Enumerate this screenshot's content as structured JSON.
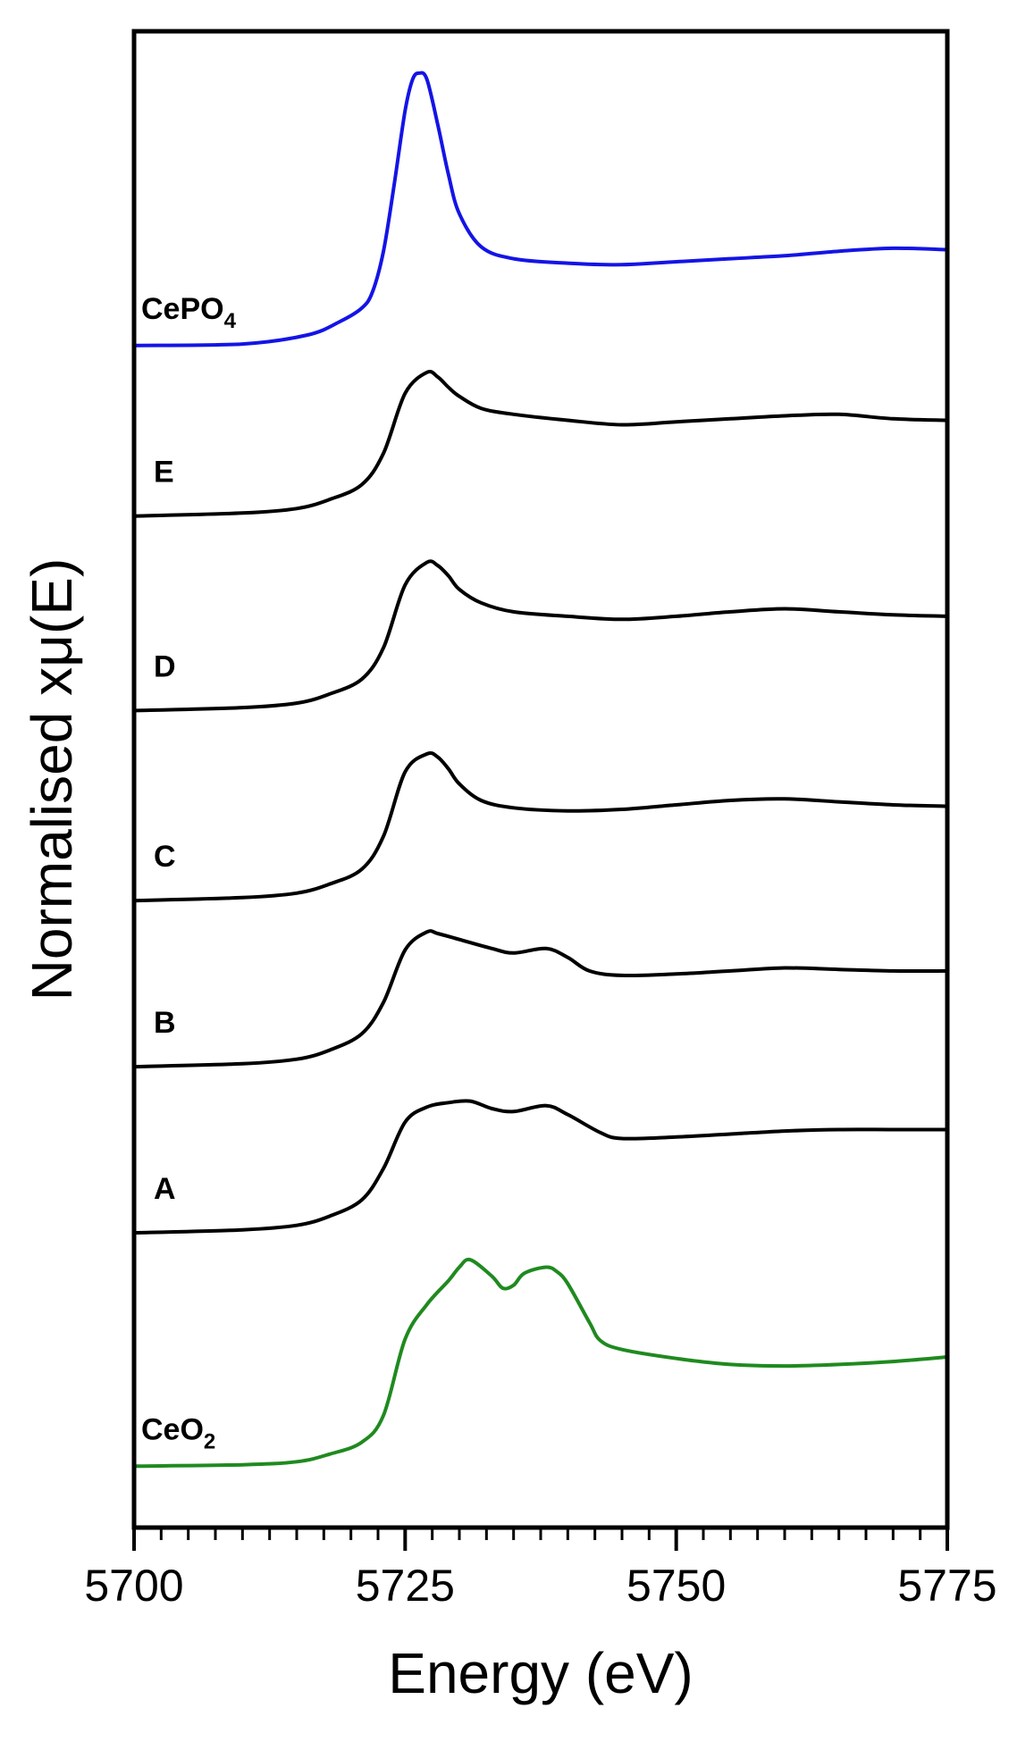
{
  "chart_data": {
    "type": "line",
    "xlabel": "Energy (eV)",
    "ylabel": "Normalised xμ(E)",
    "xlim": [
      5700,
      5775
    ],
    "ylim": [
      0,
      1
    ],
    "xticks": [
      5700,
      5725,
      5750,
      5775
    ],
    "minor_tick_step": 2.5,
    "yticks_shown": false,
    "grid": false,
    "legend": "inline labels at left of each curve",
    "series": [
      {
        "name": "CePO",
        "name_subscript": "4",
        "color": "#1414e6",
        "x": [
          5700,
          5710,
          5716,
          5719,
          5721,
          5722,
          5723,
          5724,
          5725,
          5725.7,
          5726.3,
          5727,
          5728,
          5729,
          5730,
          5732,
          5735,
          5740,
          5745,
          5750,
          5755,
          5760,
          5765,
          5770,
          5775
        ],
        "y": [
          0.79,
          0.791,
          0.797,
          0.806,
          0.815,
          0.826,
          0.853,
          0.898,
          0.947,
          0.968,
          0.972,
          0.968,
          0.938,
          0.904,
          0.878,
          0.856,
          0.848,
          0.845,
          0.844,
          0.846,
          0.848,
          0.85,
          0.853,
          0.855,
          0.854
        ]
      },
      {
        "name": "E",
        "color": "#000000",
        "x": [
          5700,
          5710,
          5715,
          5718,
          5721,
          5723,
          5725,
          5727,
          5728,
          5729,
          5730,
          5732,
          5735,
          5740,
          5745,
          5750,
          5755,
          5760,
          5765,
          5770,
          5775
        ],
        "y": [
          0.676,
          0.678,
          0.681,
          0.687,
          0.697,
          0.718,
          0.758,
          0.772,
          0.769,
          0.762,
          0.756,
          0.748,
          0.744,
          0.74,
          0.737,
          0.739,
          0.741,
          0.743,
          0.744,
          0.741,
          0.74
        ]
      },
      {
        "name": "D",
        "color": "#000000",
        "x": [
          5700,
          5710,
          5715,
          5718,
          5721,
          5723,
          5725,
          5727,
          5728,
          5729,
          5730,
          5732,
          5735,
          5740,
          5745,
          5750,
          5755,
          5760,
          5765,
          5770,
          5775
        ],
        "y": [
          0.546,
          0.548,
          0.551,
          0.557,
          0.567,
          0.588,
          0.63,
          0.645,
          0.643,
          0.636,
          0.627,
          0.618,
          0.612,
          0.609,
          0.607,
          0.609,
          0.612,
          0.614,
          0.612,
          0.61,
          0.609
        ]
      },
      {
        "name": "C",
        "color": "#000000",
        "x": [
          5700,
          5710,
          5715,
          5718,
          5721,
          5723,
          5725,
          5727,
          5728,
          5729,
          5730,
          5732,
          5735,
          5740,
          5745,
          5750,
          5755,
          5760,
          5765,
          5770,
          5775
        ],
        "y": [
          0.419,
          0.421,
          0.424,
          0.43,
          0.44,
          0.462,
          0.505,
          0.517,
          0.515,
          0.507,
          0.497,
          0.486,
          0.481,
          0.479,
          0.48,
          0.483,
          0.486,
          0.487,
          0.485,
          0.483,
          0.482
        ]
      },
      {
        "name": "B",
        "color": "#000000",
        "x": [
          5700,
          5710,
          5715,
          5718,
          5721,
          5723,
          5725,
          5727,
          5728,
          5730,
          5733,
          5735,
          5738,
          5740,
          5742,
          5745,
          5750,
          5755,
          5760,
          5765,
          5770,
          5775
        ],
        "y": [
          0.308,
          0.31,
          0.313,
          0.319,
          0.33,
          0.351,
          0.386,
          0.398,
          0.397,
          0.393,
          0.387,
          0.384,
          0.387,
          0.381,
          0.372,
          0.369,
          0.37,
          0.372,
          0.374,
          0.373,
          0.372,
          0.372
        ]
      },
      {
        "name": "A",
        "color": "#000000",
        "x": [
          5700,
          5710,
          5715,
          5718,
          5721,
          5723,
          5725,
          5727,
          5729,
          5731,
          5733,
          5735,
          5738,
          5740,
          5743,
          5745,
          5750,
          5755,
          5760,
          5765,
          5770,
          5775
        ],
        "y": [
          0.197,
          0.199,
          0.202,
          0.208,
          0.219,
          0.24,
          0.271,
          0.281,
          0.284,
          0.285,
          0.28,
          0.278,
          0.282,
          0.276,
          0.264,
          0.26,
          0.261,
          0.263,
          0.265,
          0.266,
          0.266,
          0.266
        ]
      },
      {
        "name": "CeO",
        "name_subscript": "2",
        "color": "#1f8a1f",
        "x": [
          5700,
          5710,
          5715,
          5718,
          5721,
          5723,
          5725,
          5727,
          5729,
          5730,
          5731,
          5733,
          5734,
          5735,
          5736,
          5738,
          5739,
          5740,
          5742,
          5743,
          5745,
          5750,
          5755,
          5760,
          5765,
          5770,
          5775
        ],
        "y": [
          0.041,
          0.042,
          0.044,
          0.049,
          0.057,
          0.075,
          0.126,
          0.149,
          0.165,
          0.174,
          0.179,
          0.168,
          0.16,
          0.162,
          0.17,
          0.174,
          0.171,
          0.163,
          0.137,
          0.125,
          0.119,
          0.113,
          0.109,
          0.108,
          0.109,
          0.111,
          0.114
        ]
      }
    ]
  }
}
